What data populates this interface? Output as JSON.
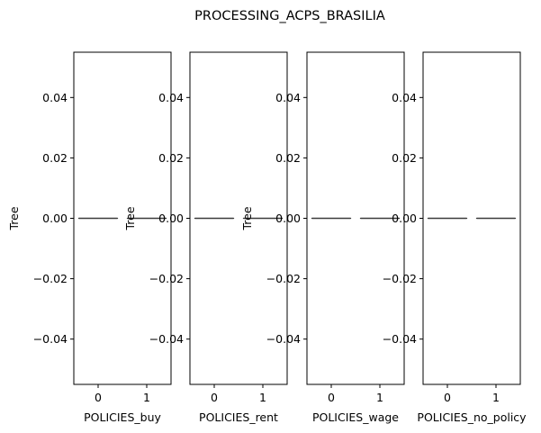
{
  "chart_data": {
    "type": "box",
    "title": "PROCESSING_ACPS_BRASILIA",
    "ylim": [
      -0.055,
      0.055
    ],
    "yticks": [
      -0.04,
      -0.02,
      0.0,
      0.02,
      0.04
    ],
    "ytick_labels": [
      "−0.04",
      "−0.02",
      "0.00",
      "0.02",
      "0.04"
    ],
    "panels": [
      {
        "xlabel": "POLICIES_buy",
        "ylabel": "Tree",
        "categories": [
          "0",
          "1"
        ],
        "series": [
          {
            "category": "0",
            "min": 0,
            "q1": 0,
            "median": 0,
            "q3": 0,
            "max": 0
          },
          {
            "category": "1",
            "min": 0,
            "q1": 0,
            "median": 0,
            "q3": 0,
            "max": 0
          }
        ]
      },
      {
        "xlabel": "POLICIES_rent",
        "ylabel": "Tree",
        "categories": [
          "0",
          "1"
        ],
        "series": [
          {
            "category": "0",
            "min": 0,
            "q1": 0,
            "median": 0,
            "q3": 0,
            "max": 0
          },
          {
            "category": "1",
            "min": 0,
            "q1": 0,
            "median": 0,
            "q3": 0,
            "max": 0
          }
        ]
      },
      {
        "xlabel": "POLICIES_wage",
        "ylabel": "Tree",
        "categories": [
          "0",
          "1"
        ],
        "series": [
          {
            "category": "0",
            "min": 0,
            "q1": 0,
            "median": 0,
            "q3": 0,
            "max": 0
          },
          {
            "category": "1",
            "min": 0,
            "q1": 0,
            "median": 0,
            "q3": 0,
            "max": 0
          }
        ]
      },
      {
        "xlabel": "POLICIES_no_policy",
        "ylabel": "",
        "categories": [
          "0",
          "1"
        ],
        "series": [
          {
            "category": "0",
            "min": 0,
            "q1": 0,
            "median": 0,
            "q3": 0,
            "max": 0
          },
          {
            "category": "1",
            "min": 0,
            "q1": 0,
            "median": 0,
            "q3": 0,
            "max": 0
          }
        ]
      }
    ],
    "colors": {
      "axis": "#000000",
      "median": "#3b3b3b",
      "background": "#ffffff"
    },
    "grid": false,
    "legend": "none"
  }
}
